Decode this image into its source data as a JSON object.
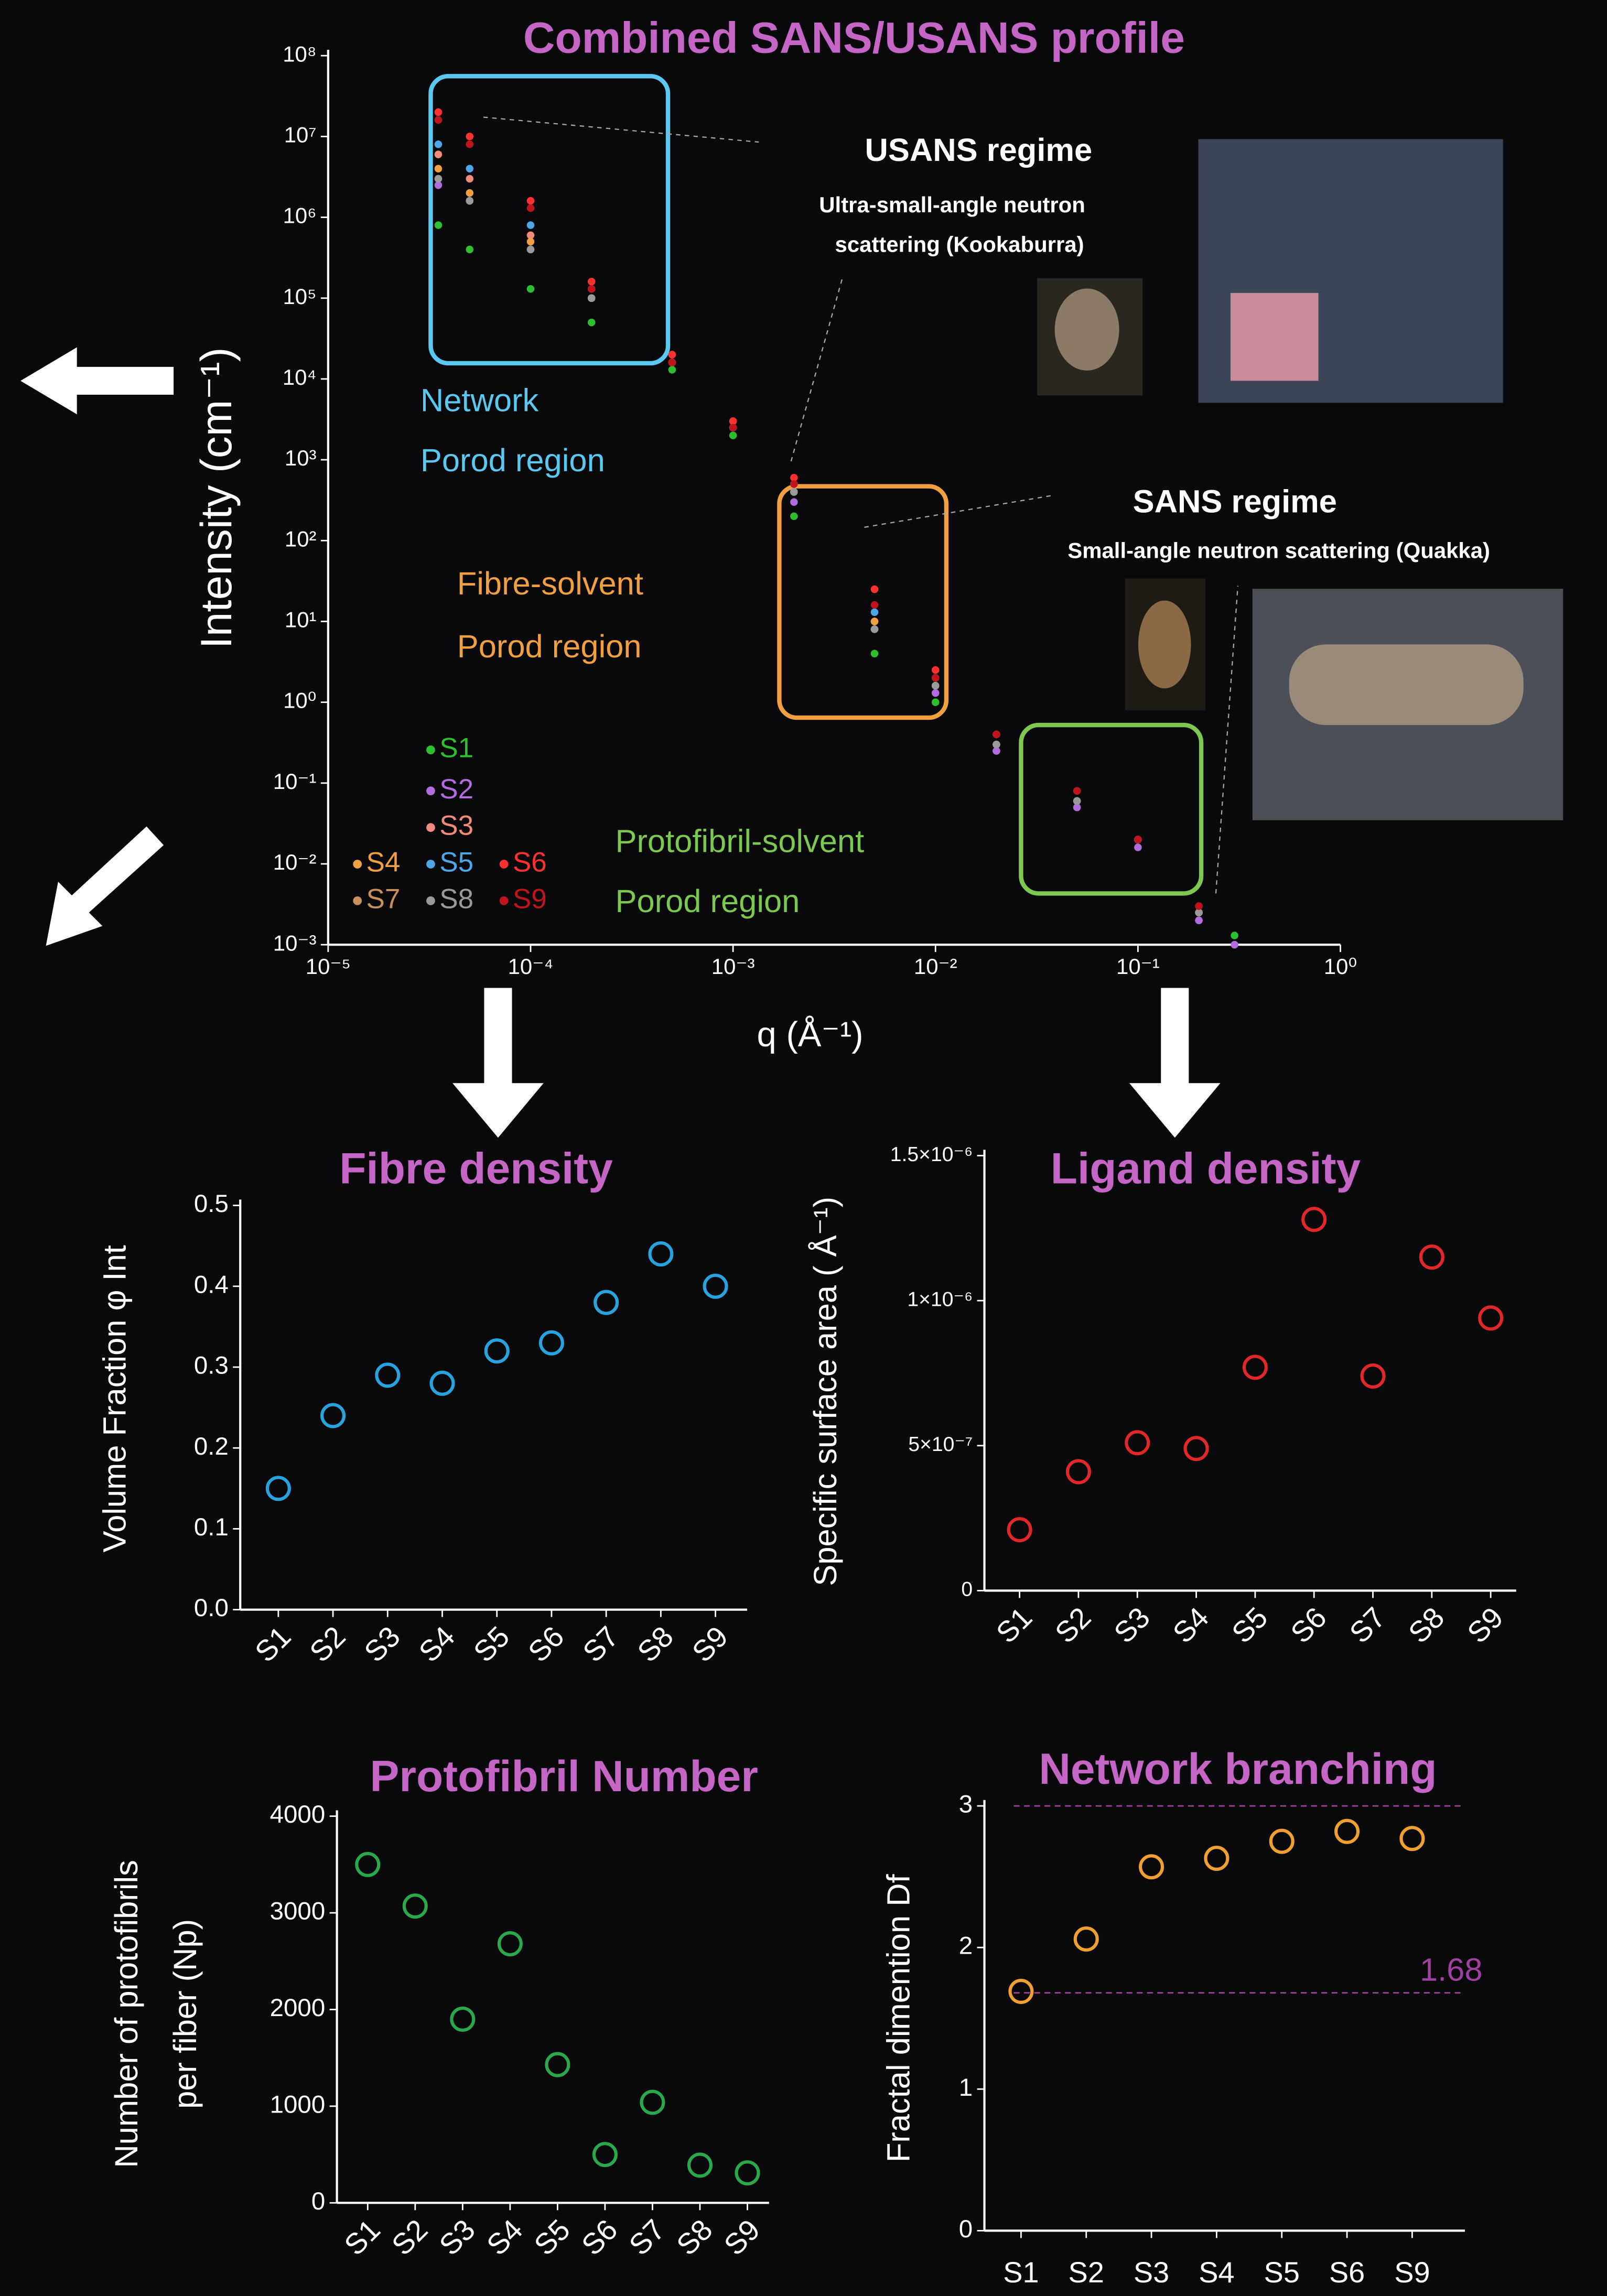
{
  "chart_data": [
    {
      "type": "scatter",
      "title": "Combined SANS/USANS profile",
      "xlabel": "q (Å⁻¹)",
      "ylabel": "Intensity (cm⁻¹)",
      "log_x": true,
      "log_y": true,
      "xlim": [
        1e-05,
        1
      ],
      "ylim": [
        0.001,
        100000000
      ],
      "xticks": [
        {
          "value": 1e-05,
          "label": "10⁻⁵"
        },
        {
          "value": 0.0001,
          "label": "10⁻⁴"
        },
        {
          "value": 0.001,
          "label": "10⁻³"
        },
        {
          "value": 0.01,
          "label": "10⁻²"
        },
        {
          "value": 0.1,
          "label": "10⁻¹"
        },
        {
          "value": 1,
          "label": "10⁰"
        }
      ],
      "yticks": [
        {
          "value": 0.001,
          "label": "10⁻³"
        },
        {
          "value": 0.01,
          "label": "10⁻²"
        },
        {
          "value": 0.1,
          "label": "10⁻¹"
        },
        {
          "value": 1,
          "label": "10⁰"
        },
        {
          "value": 10,
          "label": "10¹"
        },
        {
          "value": 100,
          "label": "10²"
        },
        {
          "value": 1000,
          "label": "10³"
        },
        {
          "value": 10000,
          "label": "10⁴"
        },
        {
          "value": 100000,
          "label": "10⁵"
        },
        {
          "value": 1000000,
          "label": "10⁶"
        },
        {
          "value": 10000000,
          "label": "10⁷"
        },
        {
          "value": 100000000,
          "label": "10⁸"
        }
      ],
      "x": [
        3.5e-05,
        5e-05,
        0.0001,
        0.0002,
        0.0005,
        0.001,
        0.002,
        0.005,
        0.01,
        0.02,
        0.05,
        0.1,
        0.2,
        0.3
      ],
      "series": [
        {
          "name": "S1",
          "color": "#2dbf2d",
          "values": [
            800000,
            400000,
            130000,
            50000,
            13000,
            2000,
            200,
            4,
            1,
            0.25,
            0.05,
            0.02,
            0.002,
            0.0013
          ]
        },
        {
          "name": "S2",
          "color": "#b36be0",
          "values": [
            2500000,
            1600000,
            400000,
            100000,
            20000,
            2500,
            300,
            8,
            1.3,
            0.25,
            0.05,
            0.016,
            0.002,
            0.001
          ]
        },
        {
          "name": "S3",
          "color": "#f08a7a",
          "values": [
            6000000,
            3000000,
            600000,
            100000,
            16000,
            2500,
            400,
            10,
            1.6,
            0.3,
            0.06,
            0.02,
            0.0025,
            null
          ]
        },
        {
          "name": "S4",
          "color": "#f0a040",
          "values": [
            4000000,
            2000000,
            500000,
            100000,
            16000,
            3000,
            500,
            10,
            1.6,
            0.3,
            0.06,
            0.02,
            0.0025,
            null
          ]
        },
        {
          "name": "S5",
          "color": "#4da6e8",
          "values": [
            8000000,
            4000000,
            800000,
            130000,
            16000,
            2500,
            500,
            13,
            2,
            0.4,
            0.06,
            0.02,
            0.0025,
            null
          ]
        },
        {
          "name": "S6",
          "color": "#ff3030",
          "values": [
            20000000,
            10000000,
            1600000,
            160000,
            20000,
            3000,
            600,
            25,
            2.5,
            0.4,
            0.08,
            0.02,
            0.003,
            null
          ]
        },
        {
          "name": "S7",
          "color": "#c8905a",
          "values": [
            3000000,
            1600000,
            400000,
            100000,
            16000,
            2500,
            400,
            8,
            1.6,
            0.3,
            0.06,
            0.02,
            0.0025,
            null
          ]
        },
        {
          "name": "S8",
          "color": "#9a9a9a",
          "values": [
            3000000,
            1600000,
            400000,
            100000,
            16000,
            2500,
            400,
            8,
            1.6,
            0.3,
            0.06,
            0.02,
            0.0025,
            null
          ]
        },
        {
          "name": "S9",
          "color": "#c0141c",
          "values": [
            16000000,
            8000000,
            1300000,
            130000,
            16000,
            2500,
            500,
            16,
            2,
            0.4,
            0.08,
            0.02,
            0.003,
            null
          ]
        }
      ],
      "annotations": [
        "USANS regime",
        "Ultra-small-angle neutron",
        "scattering (Kookaburra)",
        "SANS regime",
        "Small-angle neutron scattering (Quakka)",
        "Network",
        "Porod region",
        "Fibre-solvent",
        "Porod region",
        "Protofibril-solvent",
        "Porod region"
      ]
    },
    {
      "type": "dot",
      "title": "Fibre density",
      "ylabel": "Volume Fraction φ Int",
      "color": "#29a3dd",
      "categories": [
        "S1",
        "S2",
        "S3",
        "S4",
        "S5",
        "S6",
        "S7",
        "S8",
        "S9"
      ],
      "values": [
        0.15,
        0.24,
        0.29,
        0.28,
        0.32,
        0.33,
        0.38,
        0.44,
        0.4
      ],
      "ylim": [
        0,
        0.5
      ],
      "yticks": [
        {
          "value": 0,
          "label": "0.0"
        },
        0.1,
        0.2,
        0.3,
        0.4,
        0.5
      ]
    },
    {
      "type": "dot",
      "title": "Ligand density",
      "ylabel": "Specific surface area ( Å⁻¹)",
      "color": "#e02828",
      "categories": [
        "S1",
        "S2",
        "S3",
        "S4",
        "S5",
        "S6",
        "S7",
        "S8",
        "S9"
      ],
      "values": [
        2.1e-07,
        4.1e-07,
        5.1e-07,
        4.9e-07,
        7.7e-07,
        1.28e-06,
        7.4e-07,
        1.15e-06,
        9.4e-07
      ],
      "ylim": [
        0,
        1.5e-06
      ],
      "yticks": [
        0,
        {
          "value": 5e-07,
          "label": "5×10⁻⁷"
        },
        {
          "value": 1e-06,
          "label": "1×10⁻⁶"
        },
        {
          "value": 1.5e-06,
          "label": "1.5×10⁻⁶"
        }
      ]
    },
    {
      "type": "dot",
      "title": "Protofibril Number",
      "ylabel": [
        "Number of protofibrils",
        "per fiber (Np)"
      ],
      "color": "#2aa84a",
      "categories": [
        "S1",
        "S2",
        "S3",
        "S4",
        "S5",
        "S6",
        "S7",
        "S8",
        "S9"
      ],
      "values": [
        3500,
        3070,
        1900,
        2680,
        1430,
        500,
        1040,
        390,
        310
      ],
      "ylim": [
        0,
        4000
      ],
      "yticks": [
        0,
        1000,
        2000,
        3000,
        4000
      ]
    },
    {
      "type": "dot",
      "title": "Network branching",
      "ylabel": "Fractal dimention Df",
      "color": "#f0a030",
      "categories": [
        "S1",
        "S2",
        "S3",
        "S4",
        "S5",
        "S6",
        "S9"
      ],
      "values": [
        1.69,
        2.06,
        2.57,
        2.63,
        2.75,
        2.82,
        2.77
      ],
      "ylim": [
        0,
        3
      ],
      "yticks": [
        0,
        1,
        2,
        3
      ],
      "hlines": [
        3,
        1.68
      ],
      "hline_color": "#a040a0"
    }
  ]
}
